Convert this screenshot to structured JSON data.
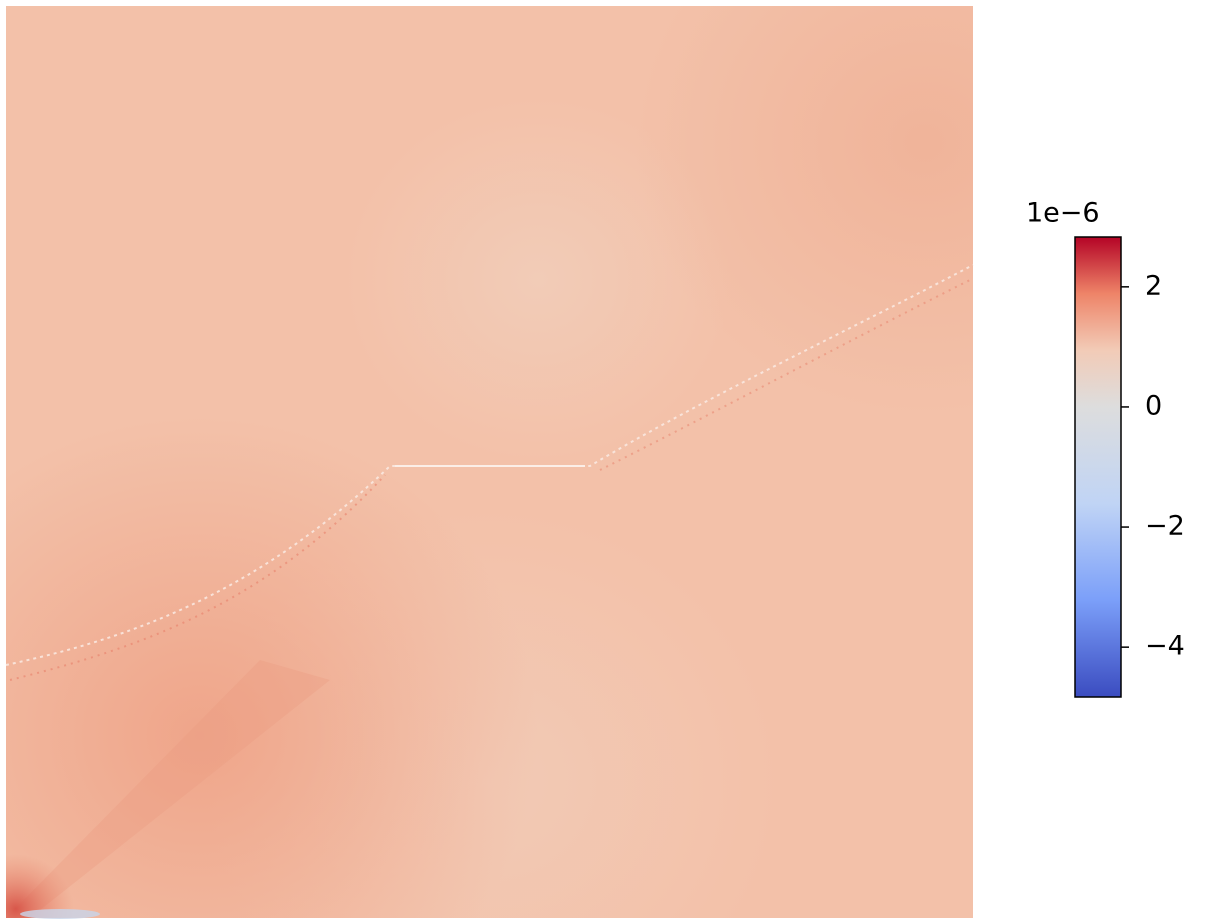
{
  "chart_data": {
    "type": "heatmap",
    "cmap": "coolwarm",
    "colorbar": {
      "offset_label": "1e−6",
      "clim": [
        -4.83,
        2.83
      ],
      "ticks": [
        {
          "value": -4,
          "label": "−4"
        },
        {
          "value": -2,
          "label": "−2"
        },
        0,
        2
      ]
    }
  }
}
